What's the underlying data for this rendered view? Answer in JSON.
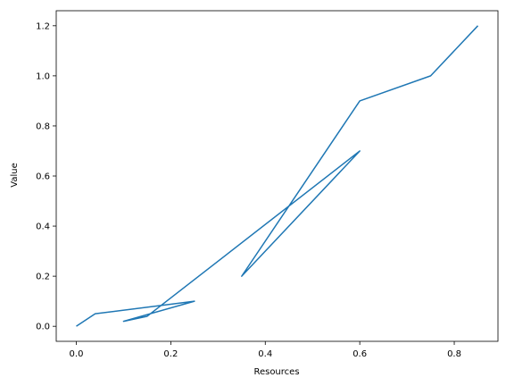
{
  "chart_data": {
    "type": "line",
    "title": "",
    "xlabel": "Resources",
    "ylabel": "Value",
    "xlim": [
      -0.0425,
      0.8925
    ],
    "ylim": [
      -0.06,
      1.26
    ],
    "xticks": [
      0.0,
      0.2,
      0.4,
      0.6,
      0.8
    ],
    "xtick_labels": [
      "0.0",
      "0.2",
      "0.4",
      "0.6",
      "0.8"
    ],
    "yticks": [
      0.0,
      0.2,
      0.4,
      0.6,
      0.8,
      1.0,
      1.2
    ],
    "ytick_labels": [
      "0.0",
      "0.2",
      "0.4",
      "0.6",
      "0.8",
      "1.0",
      "1.2"
    ],
    "grid": false,
    "legend": false,
    "series": [
      {
        "color": "#1f77b4",
        "x": [
          0.0,
          0.04,
          0.25,
          0.1,
          0.15,
          0.6,
          0.35,
          0.6,
          0.75,
          0.85
        ],
        "y": [
          0.0,
          0.05,
          0.1,
          0.02,
          0.04,
          0.7,
          0.2,
          0.9,
          1.0,
          1.2
        ]
      }
    ]
  }
}
